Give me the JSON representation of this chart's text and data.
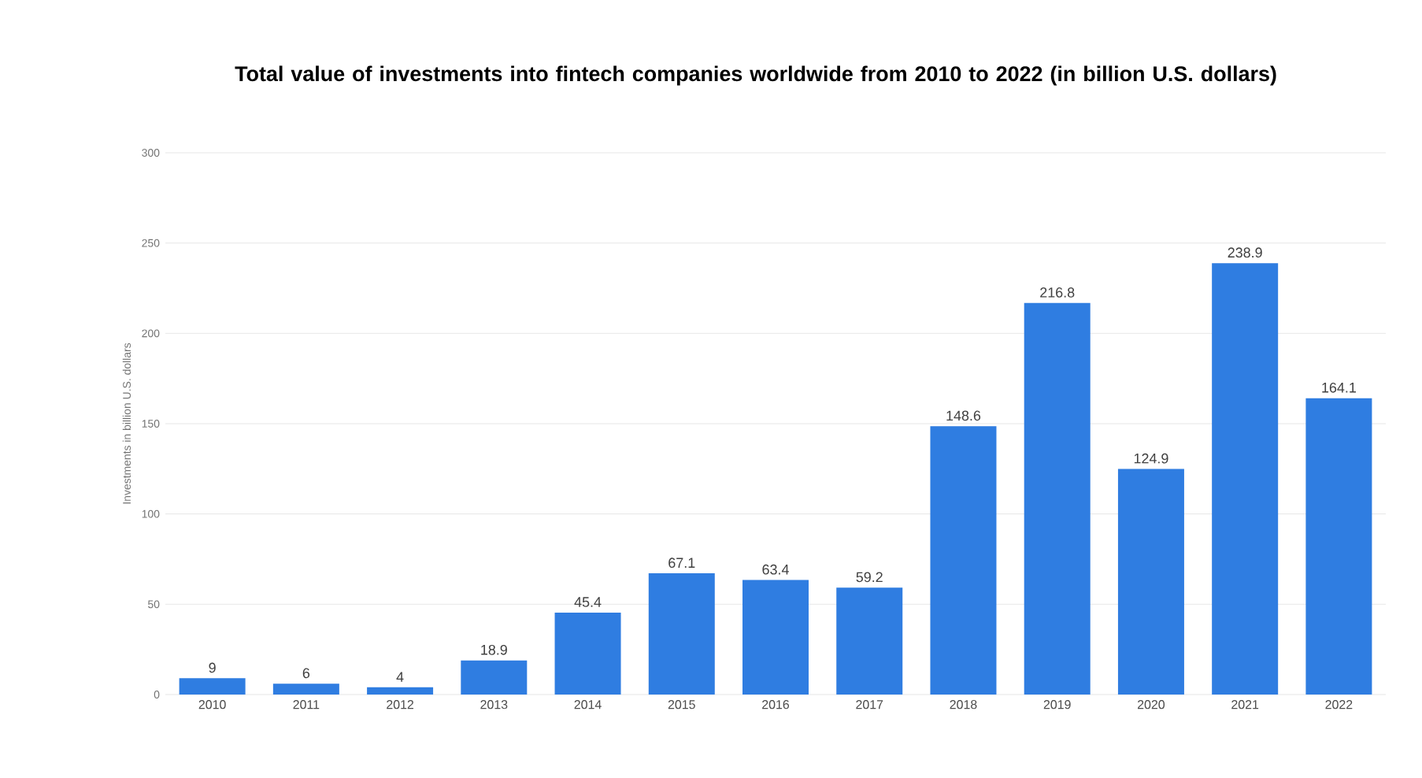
{
  "chart_data": {
    "type": "bar",
    "title": "Total value of investments into fintech companies worldwide from 2010 to 2022 (in billion U.S. dollars)",
    "ylabel": "Investments in billion U.S. dollars",
    "categories": [
      "2010",
      "2011",
      "2012",
      "2013",
      "2014",
      "2015",
      "2016",
      "2017",
      "2018",
      "2019",
      "2020",
      "2021",
      "2022"
    ],
    "values": [
      9,
      6,
      4,
      18.9,
      45.4,
      67.1,
      63.4,
      59.2,
      148.6,
      216.8,
      124.9,
      238.9,
      164.1
    ],
    "color": "#2f7de1",
    "ylim": [
      0,
      300
    ],
    "yticks": [
      0,
      50,
      100,
      150,
      200,
      250,
      300
    ],
    "grid": "y",
    "data_labels": true
  }
}
